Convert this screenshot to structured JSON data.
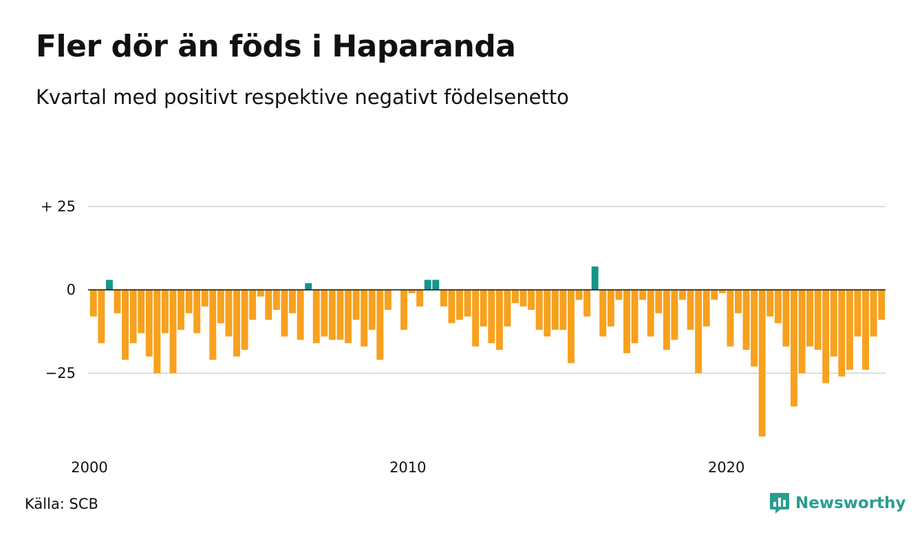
{
  "title": "Fler dör än föds i Haparanda",
  "subtitle": "Kvartal med positivt respektive negativt födelsenetto",
  "source": "Källa: SCB",
  "brand": "Newsworthy",
  "colors": {
    "positive": "#16958a",
    "negative": "#f7a11e",
    "grid": "#dddddd",
    "zero_line": "#111111"
  },
  "chart_data": {
    "type": "bar",
    "y_tick_labels": [
      "+ 25",
      "0",
      "−25"
    ],
    "y_ticks": [
      25,
      0,
      -25
    ],
    "ylim": [
      -45,
      25
    ],
    "x_tick_labels": [
      "2000",
      "2010",
      "2020"
    ],
    "x_ticks": [
      2000,
      2010,
      2020
    ],
    "x_start": 2000.0,
    "x_step": 0.25,
    "values": [
      -8,
      -16,
      3,
      -7,
      -21,
      -16,
      -13,
      -20,
      -25,
      -13,
      -25,
      -12,
      -7,
      -13,
      -5,
      -21,
      -10,
      -14,
      -20,
      -18,
      -9,
      -2,
      -9,
      -6,
      -14,
      -7,
      -15,
      2,
      -16,
      -14,
      -15,
      -15,
      -16,
      -9,
      -17,
      -12,
      -21,
      -6,
      0,
      -12,
      -1,
      -5,
      3,
      3,
      -5,
      -10,
      -9,
      -8,
      -17,
      -11,
      -16,
      -18,
      -11,
      -4,
      -5,
      -6,
      -12,
      -14,
      -12,
      -12,
      -22,
      -3,
      -8,
      7,
      -14,
      -11,
      -3,
      -19,
      -16,
      -3,
      -14,
      -7,
      -18,
      -15,
      -3,
      -12,
      -25,
      -11,
      -3,
      -1,
      -17,
      -7,
      -18,
      -23,
      -44,
      -8,
      -10,
      -17,
      -35,
      -25,
      -17,
      -18,
      -28,
      -20,
      -26,
      -24,
      -14,
      -24,
      -14,
      -9
    ]
  }
}
